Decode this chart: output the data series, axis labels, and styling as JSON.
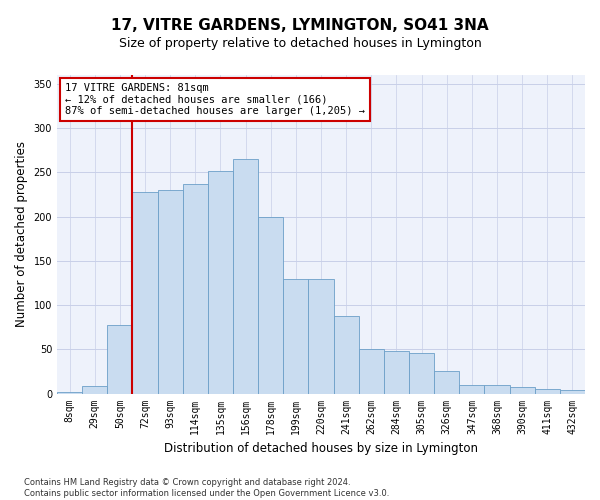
{
  "title": "17, VITRE GARDENS, LYMINGTON, SO41 3NA",
  "subtitle": "Size of property relative to detached houses in Lymington",
  "xlabel": "Distribution of detached houses by size in Lymington",
  "ylabel": "Number of detached properties",
  "categories": [
    "8sqm",
    "29sqm",
    "50sqm",
    "72sqm",
    "93sqm",
    "114sqm",
    "135sqm",
    "156sqm",
    "178sqm",
    "199sqm",
    "220sqm",
    "241sqm",
    "262sqm",
    "284sqm",
    "305sqm",
    "326sqm",
    "347sqm",
    "368sqm",
    "390sqm",
    "411sqm",
    "432sqm"
  ],
  "bar_heights": [
    2,
    8,
    78,
    228,
    230,
    237,
    252,
    265,
    200,
    130,
    130,
    88,
    50,
    48,
    46,
    25,
    10,
    10,
    7,
    5,
    4
  ],
  "bar_color": "#c9dcf0",
  "bar_edge_color": "#6b9fc8",
  "vline_x_index": 3,
  "vline_color": "#cc0000",
  "annotation_text": "17 VITRE GARDENS: 81sqm\n← 12% of detached houses are smaller (166)\n87% of semi-detached houses are larger (1,205) →",
  "annotation_box_color": "#cc0000",
  "ylim": [
    0,
    360
  ],
  "yticks": [
    0,
    50,
    100,
    150,
    200,
    250,
    300,
    350
  ],
  "footnote": "Contains HM Land Registry data © Crown copyright and database right 2024.\nContains public sector information licensed under the Open Government Licence v3.0.",
  "bg_color": "#eef2fb",
  "grid_color": "#c8cfe8",
  "title_fontsize": 11,
  "subtitle_fontsize": 9,
  "xlabel_fontsize": 8.5,
  "ylabel_fontsize": 8.5,
  "tick_fontsize": 7,
  "annotation_fontsize": 7.5,
  "footnote_fontsize": 6
}
